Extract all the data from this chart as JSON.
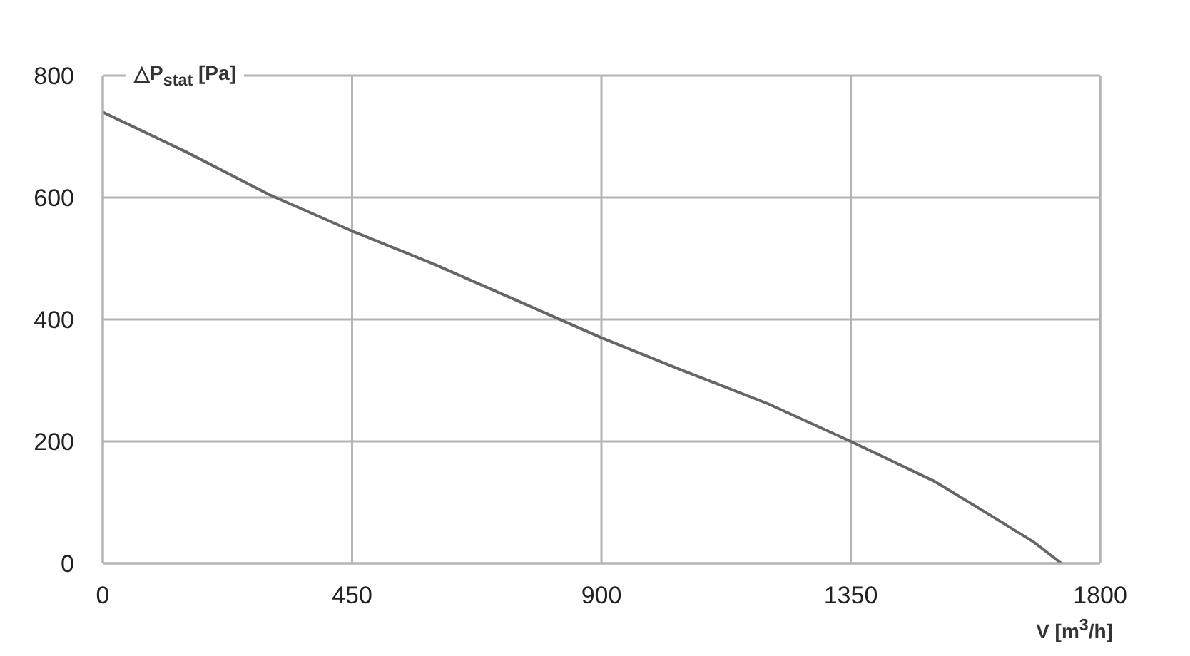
{
  "chart_data": {
    "type": "line",
    "ylabel": "△P$_{stat}$ [Pa]",
    "xlabel": "V [m$^{3}$/h]",
    "x": [
      0,
      150,
      300,
      450,
      600,
      750,
      900,
      1050,
      1200,
      1350,
      1500,
      1600,
      1680,
      1730
    ],
    "series": [
      {
        "color": "#666666",
        "values": [
          740,
          675,
          605,
          545,
          490,
          430,
          370,
          315,
          262,
          200,
          135,
          80,
          35,
          0
        ]
      }
    ],
    "xlim": [
      0,
      1800
    ],
    "xticks": [
      0,
      450,
      900,
      1350,
      1800
    ],
    "ylim": [
      0,
      800
    ],
    "yticks": [
      0,
      200,
      400,
      600,
      800
    ],
    "grid": true,
    "legend": false,
    "marker": "none",
    "line_style": "solid"
  }
}
